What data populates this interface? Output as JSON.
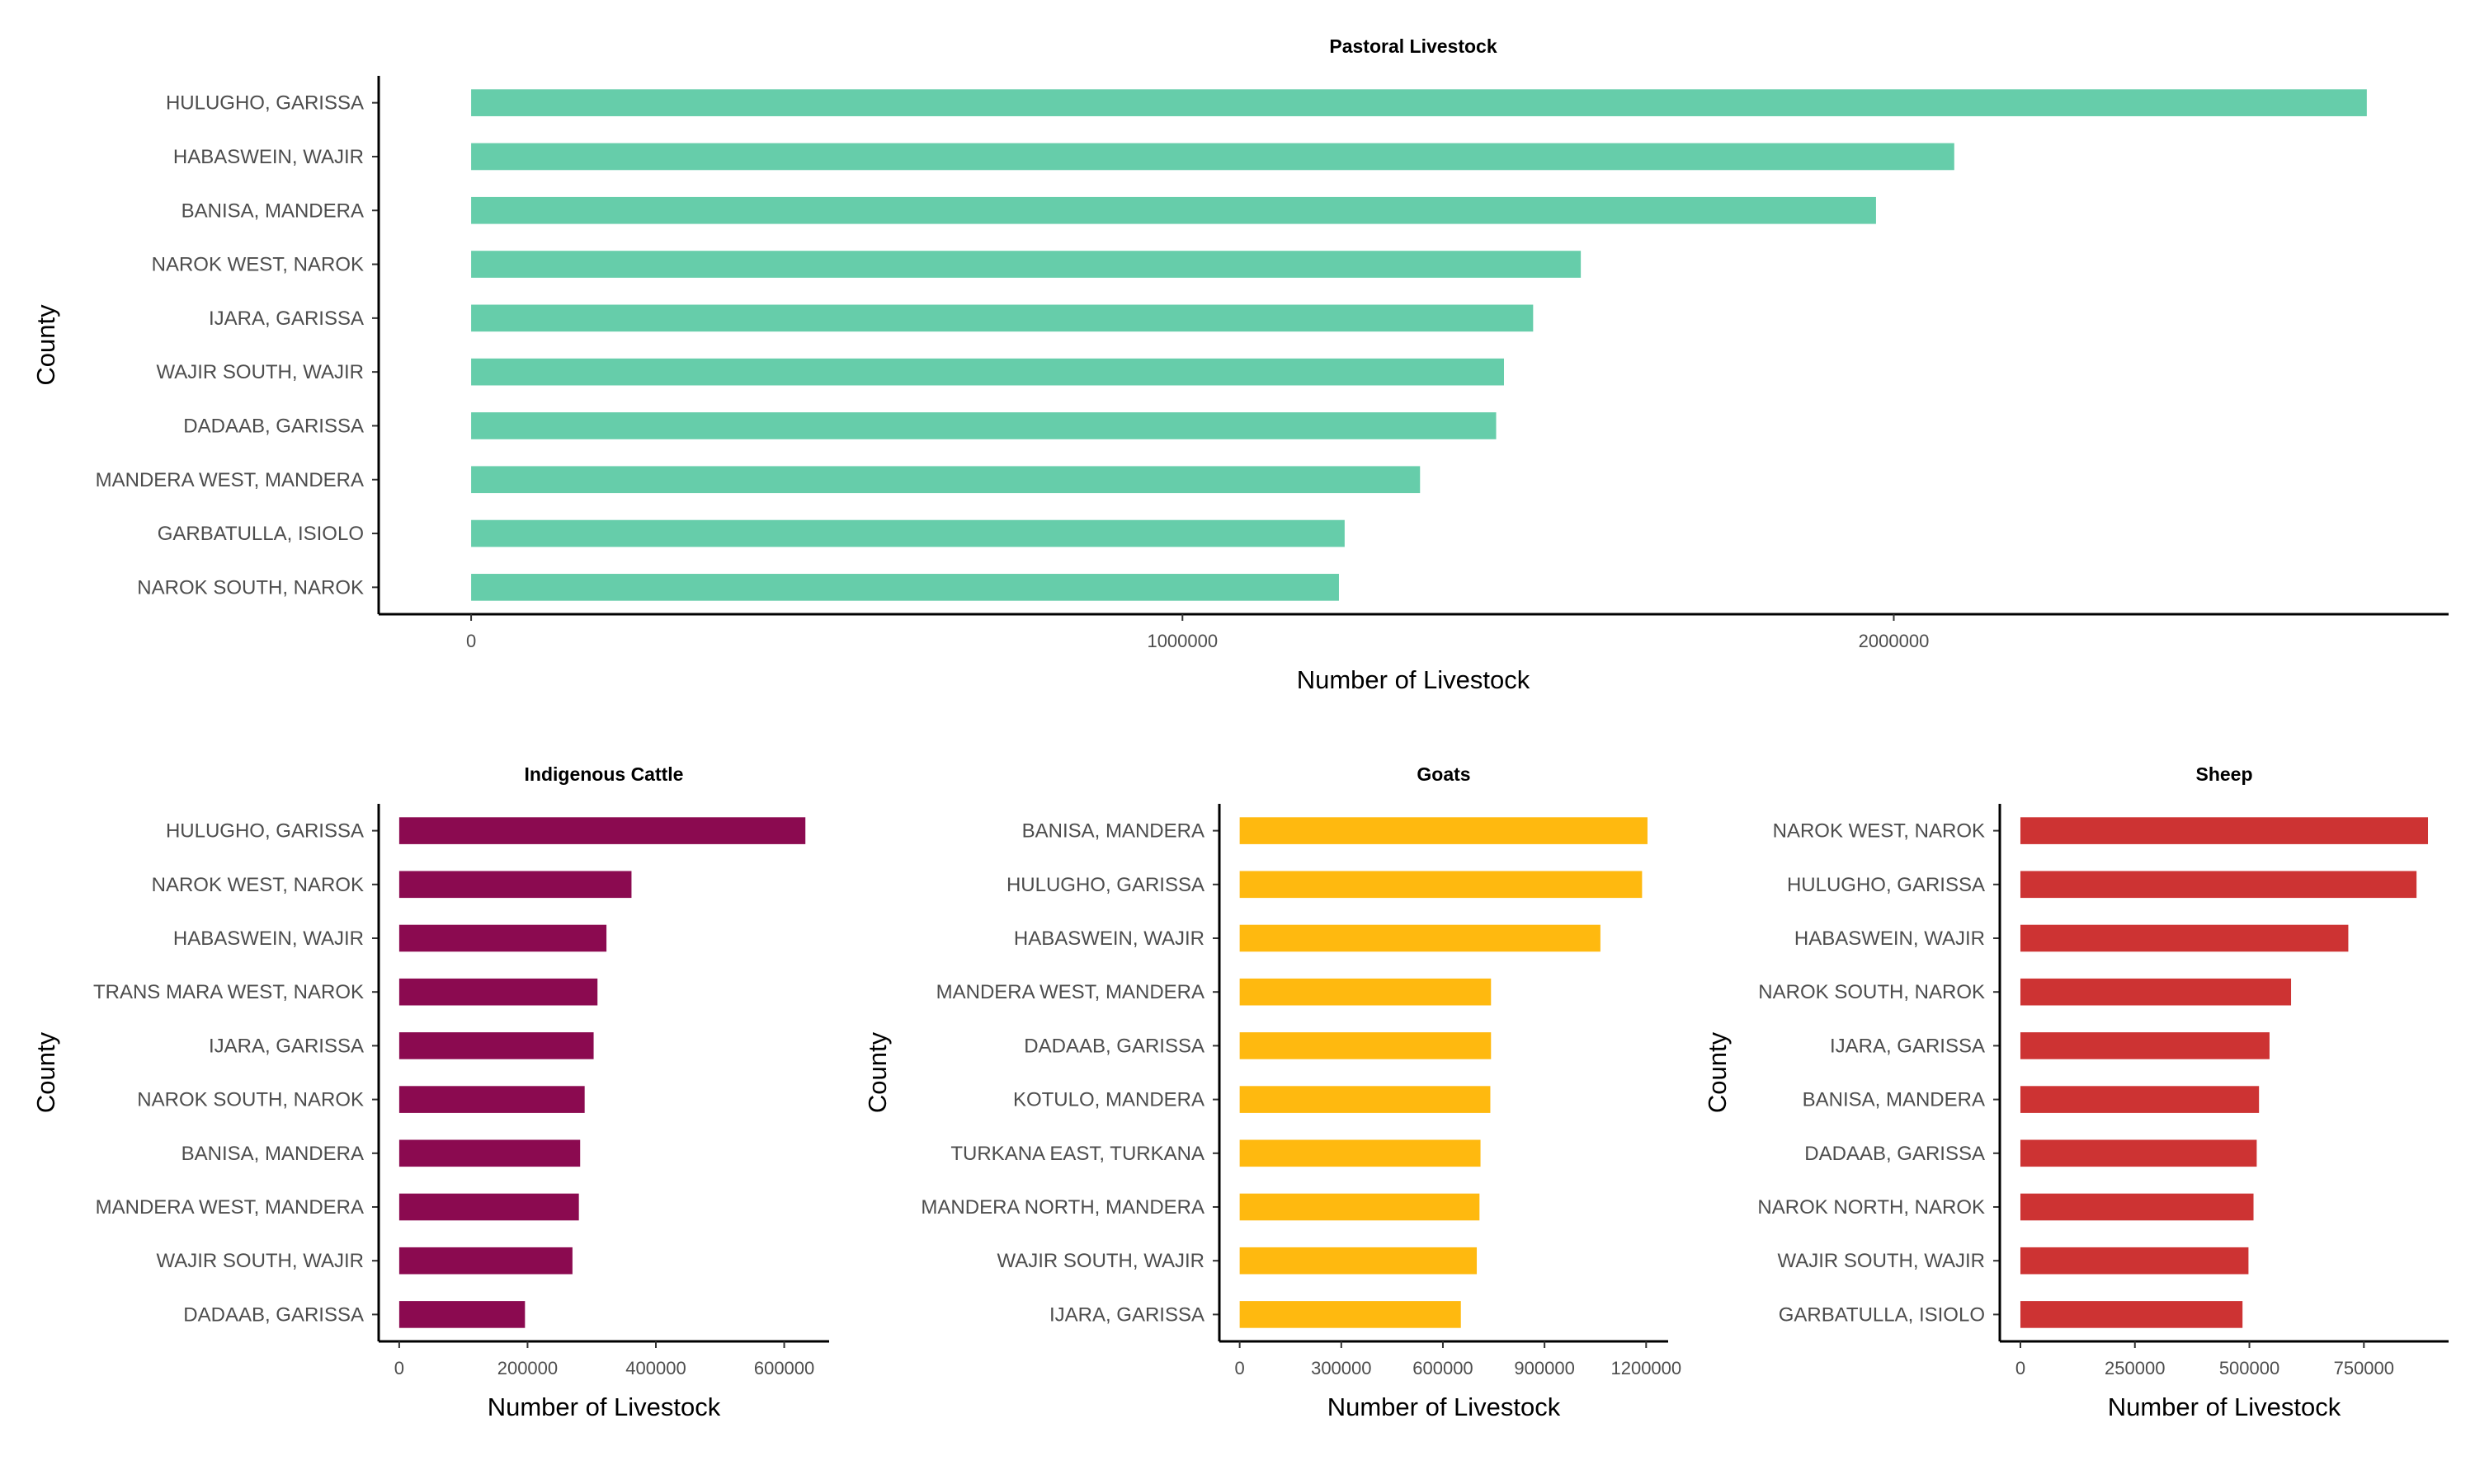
{
  "chart_data": [
    {
      "id": "pastoral",
      "type": "bar",
      "orientation": "horizontal",
      "title": "Pastoral Livestock",
      "xlabel": "Number of Livestock",
      "ylabel": "County",
      "color": "#66CDAA",
      "xlim": [
        -130000,
        2780000
      ],
      "xticks": [
        0,
        1000000,
        2000000
      ],
      "xtick_labels": [
        "0",
        "1000000",
        "2000000"
      ],
      "categories": [
        "HULUGHO, GARISSA",
        "HABASWEIN, WAJIR",
        "BANISA, MANDERA",
        "NAROK WEST, NAROK",
        "IJARA, GARISSA",
        "WAJIR SOUTH, WAJIR",
        "DADAAB, GARISSA",
        "MANDERA WEST, MANDERA",
        "GARBATULLA, ISIOLO",
        "NAROK SOUTH, NAROK"
      ],
      "values": [
        2665000,
        2085000,
        1975000,
        1560000,
        1493000,
        1452000,
        1441000,
        1334000,
        1228000,
        1220000
      ],
      "grid": false,
      "legend": "none"
    },
    {
      "id": "cattle",
      "type": "bar",
      "orientation": "horizontal",
      "title": "Indigenous Cattle",
      "xlabel": "Number of Livestock",
      "ylabel": "County",
      "color": "#8B0A50",
      "xlim": [
        -32000,
        670000
      ],
      "xticks": [
        0,
        200000,
        400000,
        600000
      ],
      "xtick_labels": [
        "0",
        "200000",
        "400000",
        "600000"
      ],
      "categories": [
        "HULUGHO, GARISSA",
        "NAROK WEST, NAROK",
        "HABASWEIN, WAJIR",
        "TRANS MARA WEST, NAROK",
        "IJARA, GARISSA",
        "NAROK SOUTH, NAROK",
        "BANISA, MANDERA",
        "MANDERA WEST, MANDERA",
        "WAJIR SOUTH, WAJIR",
        "DADAAB, GARISSA"
      ],
      "values": [
        633000,
        362000,
        323000,
        309000,
        303000,
        289000,
        282000,
        280000,
        270000,
        196000
      ],
      "grid": false,
      "legend": "none"
    },
    {
      "id": "goats",
      "type": "bar",
      "orientation": "horizontal",
      "title": "Goats",
      "xlabel": "Number of Livestock",
      "ylabel": "County",
      "color": "#FFB90F",
      "xlim": [
        -60000,
        1265000
      ],
      "xticks": [
        0,
        300000,
        600000,
        900000,
        1200000
      ],
      "xtick_labels": [
        "0",
        "300000",
        "600000",
        "900000",
        "1200000"
      ],
      "categories": [
        "BANISA, MANDERA",
        "HULUGHO, GARISSA",
        "HABASWEIN, WAJIR",
        "MANDERA WEST, MANDERA",
        "DADAAB, GARISSA",
        "KOTULO, MANDERA",
        "TURKANA EAST, TURKANA",
        "MANDERA NORTH, MANDERA",
        "WAJIR SOUTH, WAJIR",
        "IJARA, GARISSA"
      ],
      "values": [
        1204000,
        1188000,
        1065000,
        742000,
        742000,
        740000,
        711000,
        708000,
        700000,
        653000
      ],
      "grid": false,
      "legend": "none"
    },
    {
      "id": "sheep",
      "type": "bar",
      "orientation": "horizontal",
      "title": "Sheep",
      "xlabel": "Number of Livestock",
      "ylabel": "County",
      "color": "#CD3333",
      "xlim": [
        -45000,
        935000
      ],
      "xticks": [
        0,
        250000,
        500000,
        750000
      ],
      "xtick_labels": [
        "0",
        "250000",
        "500000",
        "750000"
      ],
      "categories": [
        "NAROK WEST, NAROK",
        "HULUGHO, GARISSA",
        "HABASWEIN, WAJIR",
        "NAROK SOUTH, NAROK",
        "IJARA, GARISSA",
        "BANISA, MANDERA",
        "DADAAB, GARISSA",
        "NAROK NORTH, NAROK",
        "WAJIR SOUTH, WAJIR",
        "GARBATULLA, ISIOLO"
      ],
      "values": [
        890000,
        865000,
        716000,
        591000,
        544000,
        521000,
        516000,
        509000,
        498000,
        485000
      ],
      "grid": false,
      "legend": "none"
    }
  ]
}
